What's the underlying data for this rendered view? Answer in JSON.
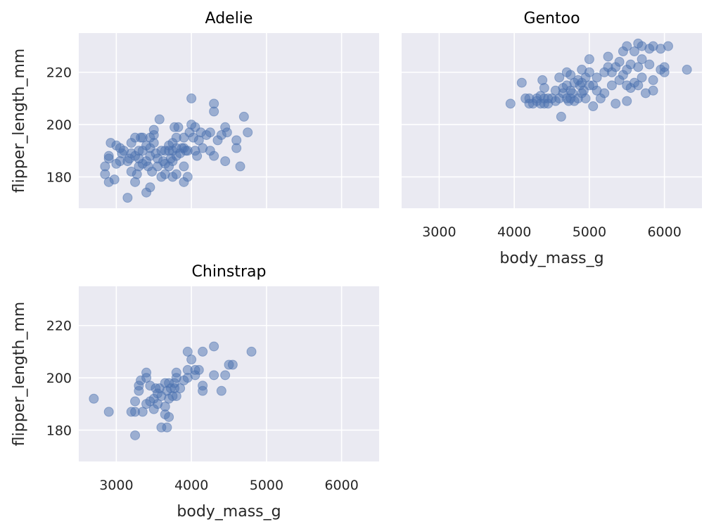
{
  "chart_data": {
    "type": "scatter",
    "xlabel": "body_mass_g",
    "ylabel": "flipper_length_mm",
    "xlim": [
      2500,
      6500
    ],
    "ylim": [
      168,
      235
    ],
    "x_ticks": [
      3000,
      4000,
      5000,
      6000
    ],
    "y_ticks": [
      180,
      200,
      220
    ],
    "grid": true,
    "point_color": "#4c72b0",
    "background_color": "#eaeaf2",
    "facets": [
      {
        "title": "Adelie",
        "points": [
          [
            2850,
            184
          ],
          [
            2850,
            181
          ],
          [
            2900,
            178
          ],
          [
            2900,
            188
          ],
          [
            2900,
            187
          ],
          [
            2925,
            193
          ],
          [
            2975,
            179
          ],
          [
            3000,
            185
          ],
          [
            3000,
            192
          ],
          [
            3050,
            186
          ],
          [
            3050,
            191
          ],
          [
            3075,
            189
          ],
          [
            3100,
            190
          ],
          [
            3150,
            172
          ],
          [
            3150,
            186
          ],
          [
            3175,
            187
          ],
          [
            3200,
            182
          ],
          [
            3200,
            189
          ],
          [
            3200,
            193
          ],
          [
            3250,
            195
          ],
          [
            3250,
            188
          ],
          [
            3250,
            178
          ],
          [
            3275,
            181
          ],
          [
            3300,
            184
          ],
          [
            3300,
            187
          ],
          [
            3300,
            190
          ],
          [
            3325,
            195
          ],
          [
            3350,
            185
          ],
          [
            3350,
            190
          ],
          [
            3350,
            195
          ],
          [
            3400,
            174
          ],
          [
            3400,
            192
          ],
          [
            3400,
            186
          ],
          [
            3425,
            184
          ],
          [
            3450,
            176
          ],
          [
            3450,
            188
          ],
          [
            3450,
            191
          ],
          [
            3450,
            195
          ],
          [
            3475,
            182
          ],
          [
            3500,
            193
          ],
          [
            3500,
            196
          ],
          [
            3500,
            198
          ],
          [
            3525,
            189
          ],
          [
            3550,
            187
          ],
          [
            3550,
            184
          ],
          [
            3575,
            202
          ],
          [
            3600,
            180
          ],
          [
            3600,
            190
          ],
          [
            3625,
            186
          ],
          [
            3650,
            181
          ],
          [
            3650,
            190
          ],
          [
            3650,
            185
          ],
          [
            3700,
            184
          ],
          [
            3700,
            190
          ],
          [
            3700,
            192
          ],
          [
            3725,
            187
          ],
          [
            3750,
            180
          ],
          [
            3750,
            186
          ],
          [
            3750,
            190
          ],
          [
            3750,
            193
          ],
          [
            3775,
            199
          ],
          [
            3800,
            181
          ],
          [
            3800,
            188
          ],
          [
            3800,
            195
          ],
          [
            3800,
            191
          ],
          [
            3825,
            199
          ],
          [
            3850,
            189
          ],
          [
            3875,
            191
          ],
          [
            3900,
            178
          ],
          [
            3900,
            184
          ],
          [
            3900,
            191
          ],
          [
            3900,
            195
          ],
          [
            3925,
            190
          ],
          [
            3950,
            180
          ],
          [
            3950,
            190
          ],
          [
            3975,
            197
          ],
          [
            4000,
            210
          ],
          [
            4000,
            200
          ],
          [
            4025,
            195
          ],
          [
            4050,
            190
          ],
          [
            4050,
            199
          ],
          [
            4075,
            188
          ],
          [
            4100,
            194
          ],
          [
            4125,
            197
          ],
          [
            4150,
            191
          ],
          [
            4200,
            196
          ],
          [
            4250,
            190
          ],
          [
            4250,
            197
          ],
          [
            4300,
            208
          ],
          [
            4300,
            205
          ],
          [
            4300,
            188
          ],
          [
            4350,
            194
          ],
          [
            4400,
            196
          ],
          [
            4450,
            186
          ],
          [
            4450,
            199
          ],
          [
            4475,
            197
          ],
          [
            4600,
            191
          ],
          [
            4600,
            194
          ],
          [
            4650,
            184
          ],
          [
            4700,
            203
          ],
          [
            4750,
            197
          ]
        ]
      },
      {
        "title": "Gentoo",
        "points": [
          [
            3950,
            208
          ],
          [
            4100,
            216
          ],
          [
            4150,
            210
          ],
          [
            4200,
            208
          ],
          [
            4200,
            210
          ],
          [
            4250,
            208
          ],
          [
            4300,
            209
          ],
          [
            4300,
            210
          ],
          [
            4350,
            208
          ],
          [
            4350,
            211
          ],
          [
            4375,
            217
          ],
          [
            4400,
            208
          ],
          [
            4400,
            210
          ],
          [
            4400,
            214
          ],
          [
            4450,
            208
          ],
          [
            4450,
            210
          ],
          [
            4500,
            210
          ],
          [
            4550,
            209
          ],
          [
            4550,
            213
          ],
          [
            4600,
            210
          ],
          [
            4600,
            218
          ],
          [
            4625,
            203
          ],
          [
            4650,
            212
          ],
          [
            4650,
            214
          ],
          [
            4700,
            210
          ],
          [
            4700,
            215
          ],
          [
            4700,
            220
          ],
          [
            4725,
            209
          ],
          [
            4750,
            210
          ],
          [
            4750,
            213
          ],
          [
            4750,
            219
          ],
          [
            4775,
            212
          ],
          [
            4800,
            209
          ],
          [
            4800,
            216
          ],
          [
            4850,
            210
          ],
          [
            4850,
            217
          ],
          [
            4875,
            215
          ],
          [
            4900,
            212
          ],
          [
            4900,
            216
          ],
          [
            4900,
            221
          ],
          [
            4925,
            213
          ],
          [
            4950,
            210
          ],
          [
            4950,
            218
          ],
          [
            5000,
            215
          ],
          [
            5000,
            220
          ],
          [
            5000,
            225
          ],
          [
            5050,
            207
          ],
          [
            5050,
            215
          ],
          [
            5100,
            213
          ],
          [
            5100,
            218
          ],
          [
            5150,
            210
          ],
          [
            5200,
            212
          ],
          [
            5200,
            220
          ],
          [
            5250,
            222
          ],
          [
            5250,
            226
          ],
          [
            5300,
            215
          ],
          [
            5300,
            220
          ],
          [
            5350,
            208
          ],
          [
            5350,
            222
          ],
          [
            5400,
            217
          ],
          [
            5400,
            224
          ],
          [
            5450,
            219
          ],
          [
            5450,
            228
          ],
          [
            5500,
            209
          ],
          [
            5500,
            215
          ],
          [
            5500,
            221
          ],
          [
            5500,
            230
          ],
          [
            5550,
            214
          ],
          [
            5550,
            223
          ],
          [
            5600,
            216
          ],
          [
            5600,
            228
          ],
          [
            5650,
            215
          ],
          [
            5650,
            222
          ],
          [
            5650,
            231
          ],
          [
            5700,
            218
          ],
          [
            5700,
            225
          ],
          [
            5700,
            230
          ],
          [
            5750,
            212
          ],
          [
            5800,
            223
          ],
          [
            5800,
            229
          ],
          [
            5850,
            213
          ],
          [
            5850,
            217
          ],
          [
            5850,
            230
          ],
          [
            5950,
            221
          ],
          [
            5950,
            229
          ],
          [
            6000,
            220
          ],
          [
            6000,
            222
          ],
          [
            6050,
            230
          ],
          [
            6300,
            221
          ]
        ]
      },
      {
        "title": "Chinstrap",
        "points": [
          [
            2700,
            192
          ],
          [
            2900,
            187
          ],
          [
            3200,
            187
          ],
          [
            3250,
            178
          ],
          [
            3250,
            187
          ],
          [
            3250,
            191
          ],
          [
            3300,
            195
          ],
          [
            3300,
            197
          ],
          [
            3325,
            199
          ],
          [
            3350,
            187
          ],
          [
            3400,
            190
          ],
          [
            3400,
            202
          ],
          [
            3400,
            200
          ],
          [
            3450,
            197
          ],
          [
            3450,
            191
          ],
          [
            3500,
            188
          ],
          [
            3500,
            192
          ],
          [
            3525,
            196
          ],
          [
            3550,
            190
          ],
          [
            3550,
            194
          ],
          [
            3575,
            196
          ],
          [
            3600,
            181
          ],
          [
            3600,
            193
          ],
          [
            3650,
            186
          ],
          [
            3650,
            189
          ],
          [
            3650,
            198
          ],
          [
            3675,
            181
          ],
          [
            3675,
            195
          ],
          [
            3700,
            185
          ],
          [
            3700,
            192
          ],
          [
            3700,
            198
          ],
          [
            3725,
            196
          ],
          [
            3750,
            193
          ],
          [
            3775,
            196
          ],
          [
            3775,
            198
          ],
          [
            3800,
            193
          ],
          [
            3800,
            200
          ],
          [
            3800,
            202
          ],
          [
            3850,
            196
          ],
          [
            3900,
            199
          ],
          [
            3950,
            200
          ],
          [
            3950,
            210
          ],
          [
            3950,
            203
          ],
          [
            4000,
            207
          ],
          [
            4050,
            201
          ],
          [
            4050,
            203
          ],
          [
            4100,
            203
          ],
          [
            4150,
            197
          ],
          [
            4150,
            195
          ],
          [
            4150,
            210
          ],
          [
            4300,
            212
          ],
          [
            4300,
            201
          ],
          [
            4400,
            195
          ],
          [
            4450,
            201
          ],
          [
            4500,
            205
          ],
          [
            4550,
            205
          ],
          [
            4800,
            210
          ]
        ]
      }
    ]
  }
}
